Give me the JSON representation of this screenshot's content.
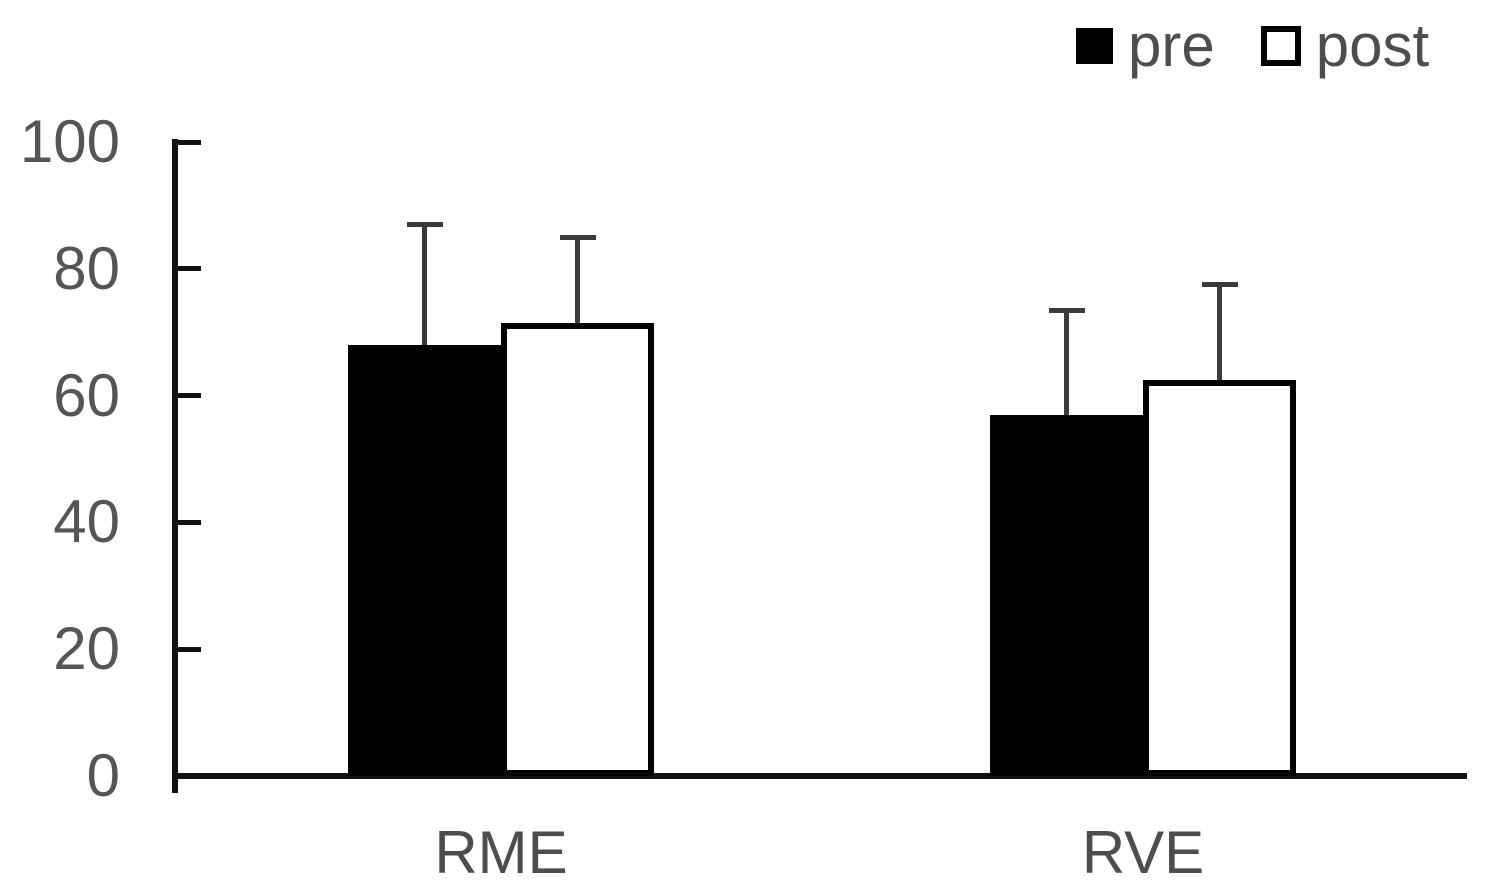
{
  "colors": {
    "background": "#ffffff",
    "axis": "#111111",
    "tick_label": "#555555",
    "category_label": "#4d4d4d",
    "legend_label": "#4d4d4d",
    "error_bar": "#3a3a3a",
    "bar_pre_fill": "#000000",
    "bar_post_fill": "#ffffff",
    "bar_border": "#000000"
  },
  "legend": {
    "items": [
      {
        "label": "pre",
        "swatch": "filled"
      },
      {
        "label": "post",
        "swatch": "outline"
      }
    ]
  },
  "chart_data": {
    "type": "bar",
    "title": "",
    "xlabel": "",
    "ylabel": "",
    "categories": [
      "RME",
      "RVE"
    ],
    "series": [
      {
        "name": "pre",
        "swatch": "filled",
        "values": [
          68,
          57
        ],
        "error_plus": [
          19,
          16.5
        ]
      },
      {
        "name": "post",
        "swatch": "outline",
        "values": [
          71.5,
          62.5
        ],
        "error_plus": [
          13.5,
          15
        ]
      }
    ],
    "ylim": [
      0,
      100
    ],
    "yticks": [
      0,
      20,
      40,
      60,
      80,
      100
    ],
    "grid": false,
    "legend_position": "top-right",
    "error_bars": "upper-only"
  }
}
